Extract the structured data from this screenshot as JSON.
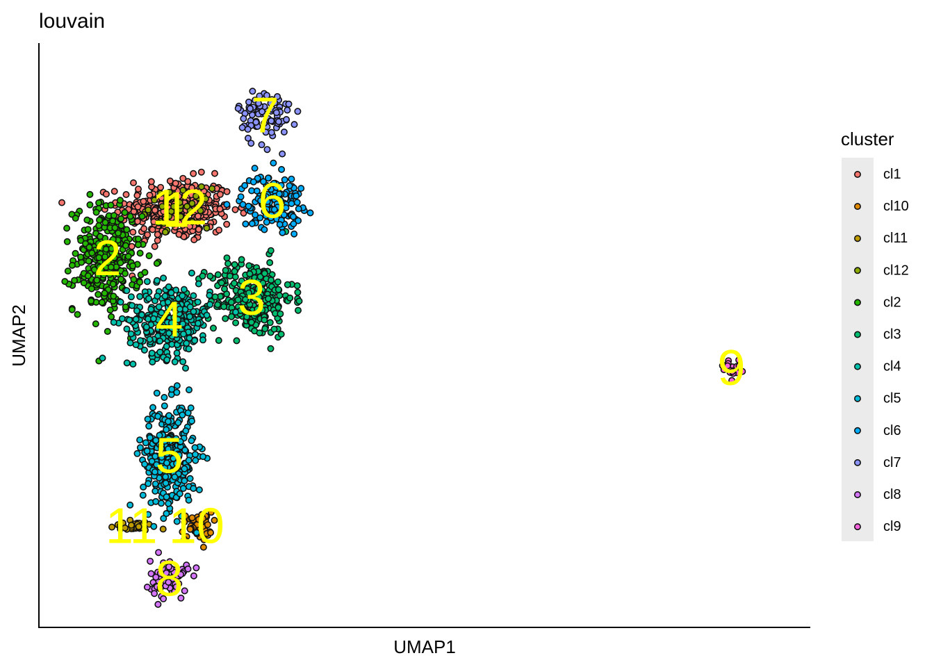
{
  "chart_data": {
    "type": "scatter",
    "title": "louvain",
    "xlabel": "UMAP1",
    "ylabel": "UMAP2",
    "grid": false,
    "legend": {
      "title": "cluster",
      "placement": "right",
      "entries": [
        "cl1",
        "cl10",
        "cl11",
        "cl12",
        "cl2",
        "cl3",
        "cl4",
        "cl5",
        "cl6",
        "cl7",
        "cl8",
        "cl9"
      ]
    },
    "series": [
      {
        "name": "cl1",
        "color": "#F8766D",
        "label": "1",
        "center": [
          3.0,
          8.2
        ],
        "spread": [
          1.5,
          1.3
        ],
        "n": 340
      },
      {
        "name": "cl10",
        "color": "#E18A00",
        "label": "10",
        "center": [
          3.6,
          -6.2
        ],
        "spread": [
          0.4,
          0.6
        ],
        "n": 45
      },
      {
        "name": "cl11",
        "color": "#BE9C00",
        "label": "11",
        "center": [
          1.7,
          -6.2
        ],
        "spread": [
          0.6,
          0.2
        ],
        "n": 30
      },
      {
        "name": "cl12",
        "color": "#8CAB00",
        "label": "12",
        "center": [
          3.1,
          8.3
        ],
        "spread": [
          0.8,
          0.8
        ],
        "n": 40
      },
      {
        "name": "cl2",
        "color": "#24B700",
        "label": "2",
        "center": [
          1.0,
          6.0
        ],
        "spread": [
          0.9,
          2.2
        ],
        "n": 320
      },
      {
        "name": "cl3",
        "color": "#00BE70",
        "label": "3",
        "center": [
          5.2,
          4.2
        ],
        "spread": [
          1.1,
          1.6
        ],
        "n": 280
      },
      {
        "name": "cl4",
        "color": "#00C1AB",
        "label": "4",
        "center": [
          2.8,
          3.2
        ],
        "spread": [
          1.1,
          1.5
        ],
        "n": 280
      },
      {
        "name": "cl5",
        "color": "#00BBDA",
        "label": "5",
        "center": [
          2.8,
          -3.0
        ],
        "spread": [
          0.7,
          2.2
        ],
        "n": 320
      },
      {
        "name": "cl6",
        "color": "#00ACFC",
        "label": "6",
        "center": [
          5.8,
          8.6
        ],
        "spread": [
          0.8,
          1.1
        ],
        "n": 150
      },
      {
        "name": "cl7",
        "color": "#8B93FF",
        "label": "7",
        "center": [
          5.6,
          12.5
        ],
        "spread": [
          0.7,
          1.2
        ],
        "n": 90
      },
      {
        "name": "cl8",
        "color": "#D575FE",
        "label": "8",
        "center": [
          2.8,
          -8.6
        ],
        "spread": [
          0.5,
          0.8
        ],
        "n": 70
      },
      {
        "name": "cl9",
        "color": "#F962DD",
        "label": "9",
        "center": [
          19.2,
          1.0
        ],
        "spread": [
          0.25,
          0.35
        ],
        "n": 25
      }
    ],
    "xlim": [
      -1,
      21.5
    ],
    "ylim": [
      -10.8,
      15.8
    ]
  }
}
